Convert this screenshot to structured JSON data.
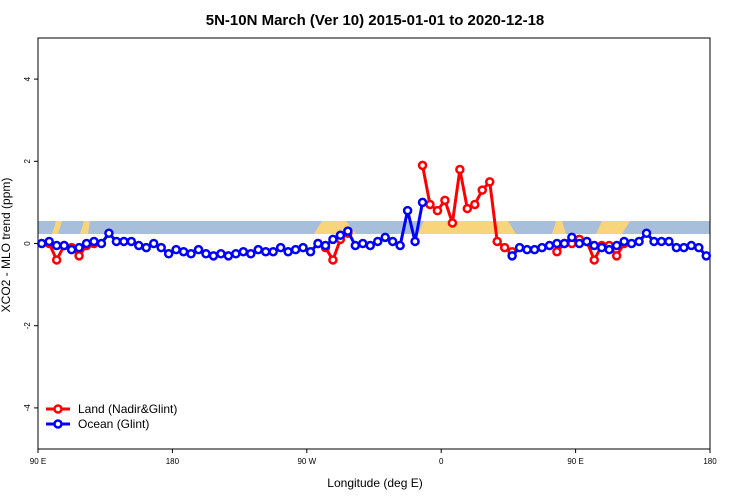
{
  "chart_data": {
    "type": "line",
    "title": "5N-10N March (Ver 10)   2015-01-01 to 2020-12-18",
    "x_label": "Longitude (deg E)",
    "y_label": "XCO2 - MLO trend (ppm)",
    "xlim": [
      90,
      540
    ],
    "ylim": [
      -5,
      5
    ],
    "xticks": [
      {
        "value": 90,
        "label": "90 E"
      },
      180,
      {
        "value": 270,
        "label": "90 W"
      },
      {
        "value": 360,
        "label": "0"
      },
      {
        "value": 450,
        "label": "90 E"
      },
      {
        "value": 540,
        "label": "180"
      }
    ],
    "yticks": [
      -4,
      -2,
      0,
      2,
      4
    ],
    "legend": "bottom-left",
    "x": [
      92.5,
      97.5,
      102.5,
      107.5,
      112.5,
      117.5,
      122.5,
      127.5,
      132.5,
      137.5,
      142.5,
      147.5,
      152.5,
      157.5,
      162.5,
      167.5,
      172.5,
      177.5,
      182.5,
      187.5,
      192.5,
      197.5,
      202.5,
      207.5,
      212.5,
      217.5,
      222.5,
      227.5,
      232.5,
      237.5,
      242.5,
      247.5,
      252.5,
      257.5,
      262.5,
      267.5,
      272.5,
      277.5,
      282.5,
      287.5,
      292.5,
      297.5,
      302.5,
      307.5,
      312.5,
      317.5,
      322.5,
      327.5,
      332.5,
      337.5,
      342.5,
      347.5,
      352.5,
      357.5,
      362.5,
      367.5,
      372.5,
      377.5,
      382.5,
      387.5,
      392.5,
      397.5,
      402.5,
      407.5,
      412.5,
      417.5,
      422.5,
      427.5,
      432.5,
      437.5,
      442.5,
      447.5,
      452.5,
      457.5,
      462.5,
      467.5,
      472.5,
      477.5,
      482.5,
      487.5,
      492.5,
      497.5,
      502.5,
      507.5,
      512.5,
      517.5,
      522.5,
      527.5,
      532.5,
      537.5
    ],
    "series": [
      {
        "name": "Land (Nadir&Glint)",
        "color": "#ff0000",
        "values": [
          null,
          0.0,
          -0.4,
          -0.05,
          -0.1,
          -0.3,
          -0.05,
          0.0,
          null,
          null,
          null,
          null,
          null,
          null,
          null,
          null,
          null,
          null,
          null,
          null,
          null,
          null,
          null,
          null,
          null,
          null,
          null,
          null,
          null,
          null,
          null,
          null,
          null,
          null,
          null,
          null,
          null,
          0.0,
          -0.1,
          -0.4,
          0.1,
          0.25,
          null,
          null,
          null,
          null,
          null,
          null,
          null,
          null,
          null,
          1.9,
          0.95,
          0.8,
          1.05,
          0.5,
          1.8,
          0.85,
          0.95,
          1.3,
          1.5,
          0.05,
          -0.1,
          -0.2,
          null,
          null,
          null,
          null,
          null,
          -0.2,
          0.0,
          0.0,
          0.1,
          0.05,
          -0.4,
          -0.05,
          -0.05,
          -0.3,
          0.0,
          null,
          null,
          null,
          null,
          null,
          null,
          null,
          null,
          null,
          null,
          null
        ]
      },
      {
        "name": "Ocean (Glint)",
        "color": "#0000ff",
        "values": [
          0.0,
          0.05,
          -0.05,
          -0.05,
          -0.15,
          -0.1,
          0.0,
          0.05,
          0.0,
          0.25,
          0.05,
          0.05,
          0.05,
          -0.05,
          -0.1,
          0.0,
          -0.1,
          -0.25,
          -0.15,
          -0.2,
          -0.25,
          -0.15,
          -0.25,
          -0.3,
          -0.25,
          -0.3,
          -0.25,
          -0.2,
          -0.25,
          -0.15,
          -0.2,
          -0.2,
          -0.1,
          -0.2,
          -0.15,
          -0.1,
          -0.2,
          0.0,
          -0.05,
          0.1,
          0.2,
          0.3,
          -0.05,
          0.0,
          -0.05,
          0.05,
          0.15,
          0.05,
          -0.05,
          0.8,
          0.05,
          1.0,
          null,
          null,
          null,
          null,
          null,
          null,
          null,
          null,
          null,
          null,
          null,
          -0.3,
          -0.1,
          -0.15,
          -0.15,
          -0.1,
          -0.05,
          0.0,
          0.0,
          0.15,
          0.0,
          0.05,
          -0.05,
          -0.1,
          -0.15,
          -0.05,
          0.05,
          0.0,
          0.05,
          0.25,
          0.05,
          0.05,
          0.05,
          -0.1,
          -0.1,
          -0.05,
          -0.1,
          -0.3
        ]
      }
    ]
  }
}
